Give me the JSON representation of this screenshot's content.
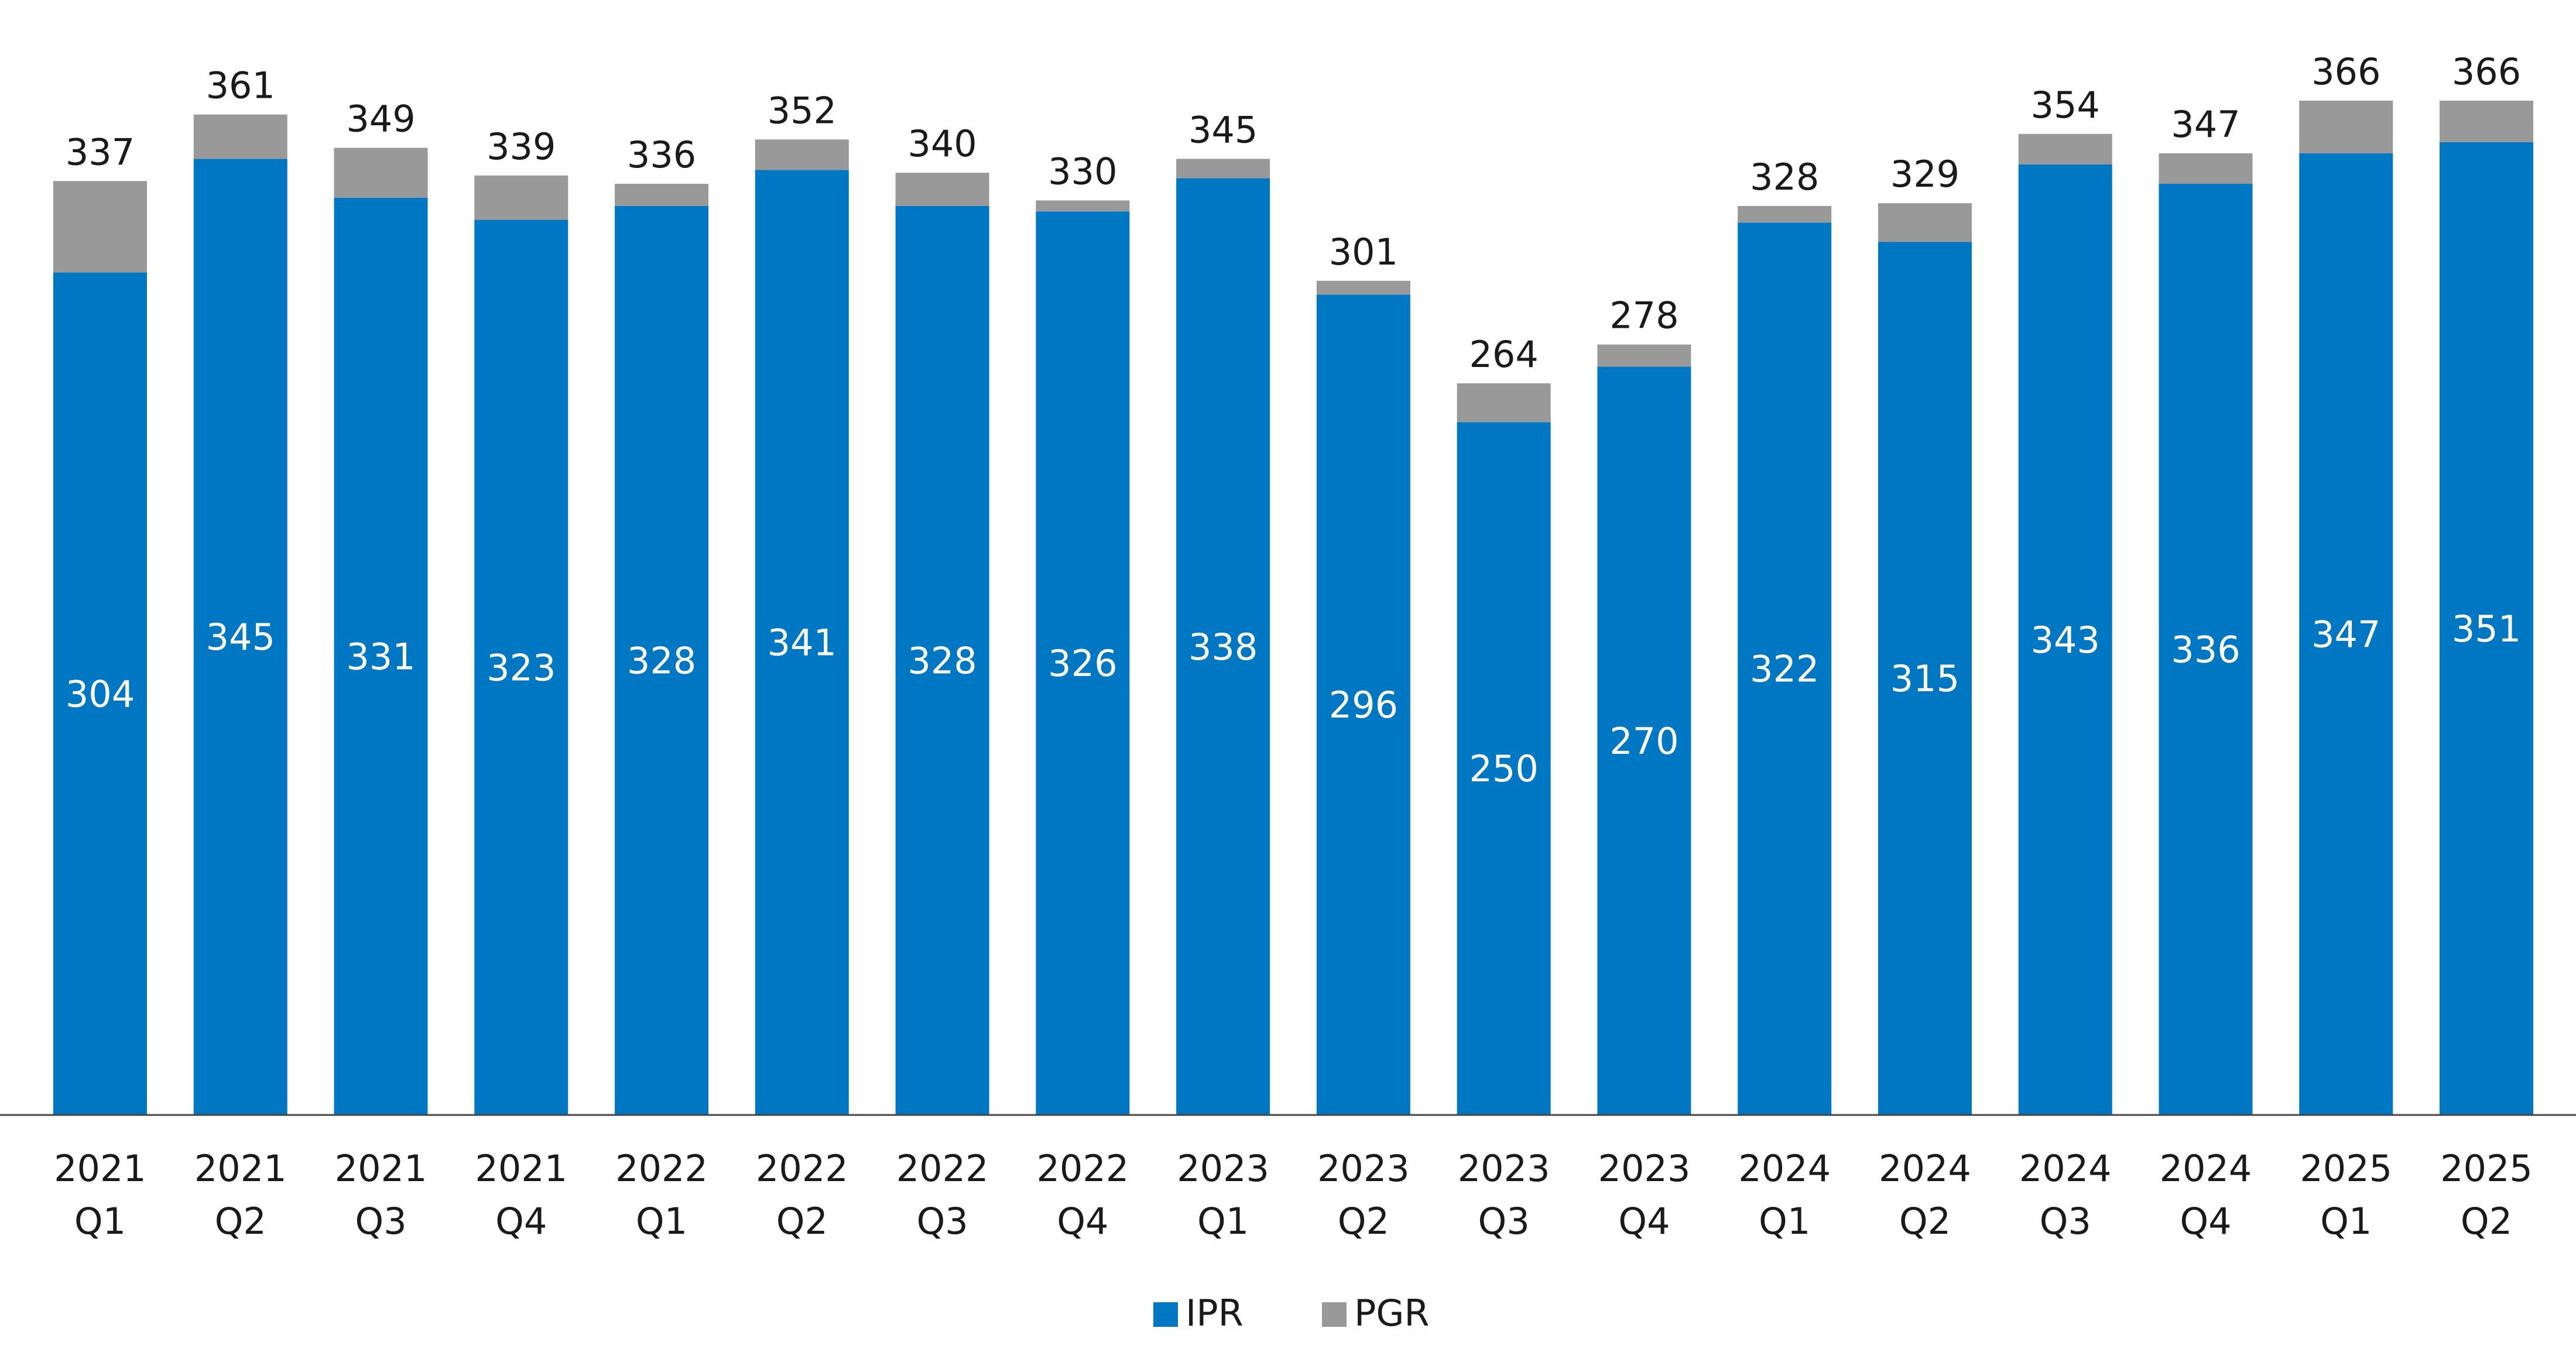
{
  "chart_data": {
    "type": "bar",
    "stacked": true,
    "categories": [
      [
        "2021",
        "Q1"
      ],
      [
        "2021",
        "Q2"
      ],
      [
        "2021",
        "Q3"
      ],
      [
        "2021",
        "Q4"
      ],
      [
        "2022",
        "Q1"
      ],
      [
        "2022",
        "Q2"
      ],
      [
        "2022",
        "Q3"
      ],
      [
        "2022",
        "Q4"
      ],
      [
        "2023",
        "Q1"
      ],
      [
        "2023",
        "Q2"
      ],
      [
        "2023",
        "Q3"
      ],
      [
        "2023",
        "Q4"
      ],
      [
        "2024",
        "Q1"
      ],
      [
        "2024",
        "Q2"
      ],
      [
        "2024",
        "Q3"
      ],
      [
        "2024",
        "Q4"
      ],
      [
        "2025",
        "Q1"
      ],
      [
        "2025",
        "Q2"
      ]
    ],
    "series": [
      {
        "name": "IPR",
        "color": "#0077c2",
        "values": [
          304,
          345,
          331,
          323,
          328,
          341,
          328,
          326,
          338,
          296,
          250,
          270,
          322,
          315,
          343,
          336,
          347,
          351
        ]
      },
      {
        "name": "PGR",
        "color": "#999999",
        "values": [
          33,
          16,
          18,
          16,
          8,
          11,
          12,
          4,
          7,
          5,
          14,
          8,
          6,
          14,
          11,
          11,
          19,
          15
        ]
      }
    ],
    "totals": [
      337,
      361,
      349,
      339,
      336,
      352,
      340,
      330,
      345,
      301,
      264,
      278,
      328,
      329,
      354,
      347,
      366,
      366
    ],
    "title": "",
    "xlabel": "",
    "ylabel": "",
    "ylim": [
      0,
      400
    ],
    "grid": false,
    "y_axis_visible": false,
    "legend_position": "bottom-center"
  }
}
